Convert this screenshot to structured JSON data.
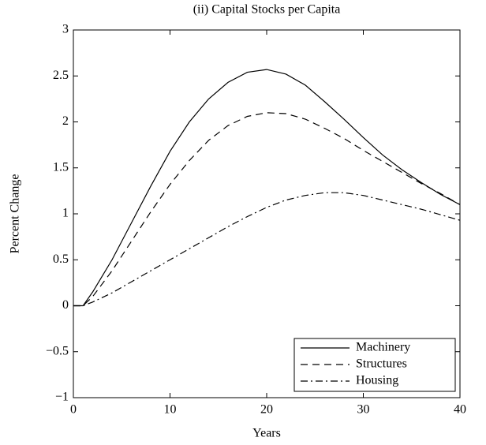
{
  "chart_data": {
    "type": "line",
    "title": "(ii) Capital Stocks per Capita",
    "xlabel": "Years",
    "ylabel": "Percent Change",
    "x": [
      0,
      1,
      2,
      4,
      6,
      8,
      10,
      12,
      14,
      16,
      18,
      20,
      22,
      24,
      26,
      28,
      30,
      32,
      34,
      36,
      38,
      40
    ],
    "series": [
      {
        "name": "Machinery",
        "color": "#000000",
        "style": "solid",
        "values": [
          0,
          0,
          0.15,
          0.5,
          0.9,
          1.3,
          1.68,
          2.0,
          2.25,
          2.43,
          2.54,
          2.57,
          2.52,
          2.4,
          2.22,
          2.03,
          1.83,
          1.64,
          1.48,
          1.34,
          1.21,
          1.1
        ]
      },
      {
        "name": "Structures",
        "color": "#000000",
        "style": "dashed",
        "values": [
          0,
          0,
          0.1,
          0.38,
          0.7,
          1.02,
          1.32,
          1.58,
          1.8,
          1.96,
          2.06,
          2.1,
          2.09,
          2.03,
          1.93,
          1.82,
          1.69,
          1.57,
          1.45,
          1.33,
          1.22,
          1.1
        ]
      },
      {
        "name": "Housing",
        "color": "#000000",
        "style": "dashdot",
        "values": [
          0,
          0,
          0.04,
          0.14,
          0.26,
          0.38,
          0.5,
          0.62,
          0.74,
          0.86,
          0.97,
          1.07,
          1.15,
          1.2,
          1.23,
          1.23,
          1.2,
          1.15,
          1.1,
          1.05,
          0.99,
          0.93
        ]
      }
    ],
    "xlim": [
      0,
      40
    ],
    "xticks": [
      0,
      10,
      20,
      30,
      40
    ],
    "ylim": [
      -1,
      3
    ],
    "yticks": [
      {
        "value": -1,
        "label": "−1"
      },
      {
        "value": -0.5,
        "label": "−0.5"
      },
      0,
      0.5,
      1,
      1.5,
      2,
      2.5,
      3
    ],
    "grid": false,
    "legend": "lower right"
  }
}
